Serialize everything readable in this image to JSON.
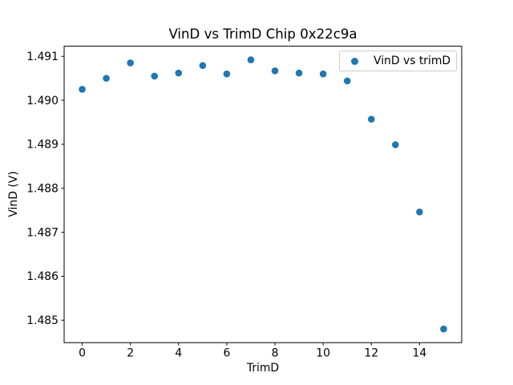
{
  "chart_data": {
    "type": "scatter",
    "title": "VinD vs TrimD Chip 0x22c9a",
    "xlabel": "TrimD",
    "ylabel": "VinD (V)",
    "legend": {
      "label": "VinD vs trimD",
      "position": "upper right"
    },
    "x": [
      0,
      1,
      2,
      3,
      4,
      5,
      6,
      7,
      8,
      9,
      10,
      11,
      12,
      13,
      14,
      15
    ],
    "y": [
      1.49025,
      1.4905,
      1.49085,
      1.49055,
      1.49062,
      1.49079,
      1.4906,
      1.49092,
      1.49067,
      1.49062,
      1.4906,
      1.49044,
      1.48957,
      1.48899,
      1.48746,
      1.4848
    ],
    "xlim": [
      -0.75,
      15.75
    ],
    "ylim": [
      1.48449,
      1.49123
    ],
    "xticks": [
      0,
      2,
      4,
      6,
      8,
      10,
      12,
      14
    ],
    "xtick_labels": [
      "0",
      "2",
      "4",
      "6",
      "8",
      "10",
      "12",
      "14"
    ],
    "yticks": [
      1.485,
      1.486,
      1.487,
      1.488,
      1.489,
      1.49,
      1.491
    ],
    "ytick_labels": [
      "1.485",
      "1.486",
      "1.487",
      "1.488",
      "1.489",
      "1.490",
      "1.491"
    ],
    "grid": false,
    "colors": {
      "marker": "#1f77b4",
      "spine": "#000000",
      "text": "#000000",
      "legend_border": "#cccccc",
      "background": "#ffffff"
    }
  }
}
